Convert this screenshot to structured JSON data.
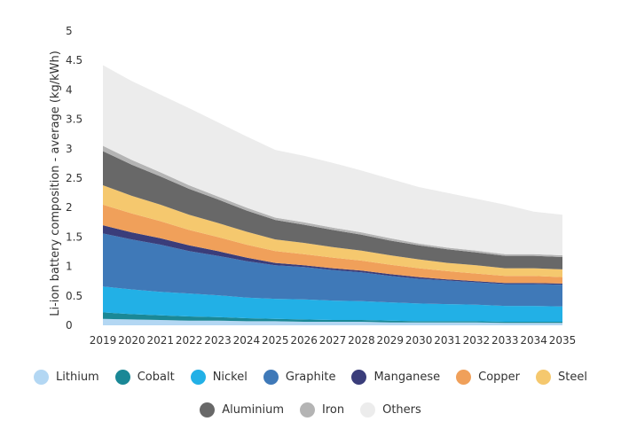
{
  "chart_data": {
    "type": "area",
    "stacked": true,
    "title": "",
    "xlabel": "",
    "ylabel": "Li-ion battery composition - average (kg/kWh)",
    "ylim": [
      0,
      5
    ],
    "yticks": [
      "0",
      "0.5",
      "1",
      "1.5",
      "2",
      "2.5",
      "3",
      "3.5",
      "4",
      "4.5",
      "5"
    ],
    "x": [
      "2019",
      "2020",
      "2021",
      "2022",
      "2023",
      "2024",
      "2025",
      "2026",
      "2027",
      "2028",
      "2029",
      "2030",
      "2031",
      "2032",
      "2033",
      "2034",
      "2035"
    ],
    "series": [
      {
        "name": "Lithium",
        "color": "#b3d7f3",
        "values": [
          0.11,
          0.1,
          0.09,
          0.08,
          0.08,
          0.07,
          0.07,
          0.06,
          0.06,
          0.06,
          0.05,
          0.05,
          0.05,
          0.05,
          0.04,
          0.04,
          0.04
        ]
      },
      {
        "name": "Cobalt",
        "color": "#1a8896",
        "values": [
          0.11,
          0.09,
          0.08,
          0.07,
          0.06,
          0.05,
          0.04,
          0.04,
          0.03,
          0.03,
          0.03,
          0.02,
          0.02,
          0.02,
          0.02,
          0.02,
          0.02
        ]
      },
      {
        "name": "Nickel",
        "color": "#22b0e6",
        "values": [
          0.44,
          0.42,
          0.4,
          0.39,
          0.37,
          0.35,
          0.34,
          0.34,
          0.33,
          0.32,
          0.31,
          0.3,
          0.29,
          0.28,
          0.27,
          0.27,
          0.26
        ]
      },
      {
        "name": "Graphite",
        "color": "#3f79b8",
        "values": [
          0.9,
          0.85,
          0.8,
          0.72,
          0.67,
          0.62,
          0.57,
          0.55,
          0.52,
          0.49,
          0.45,
          0.42,
          0.4,
          0.38,
          0.37,
          0.37,
          0.37
        ]
      },
      {
        "name": "Manganese",
        "color": "#3a3d7a",
        "values": [
          0.14,
          0.12,
          0.11,
          0.1,
          0.08,
          0.06,
          0.04,
          0.03,
          0.03,
          0.03,
          0.03,
          0.03,
          0.02,
          0.02,
          0.02,
          0.02,
          0.02
        ]
      },
      {
        "name": "Copper",
        "color": "#f0a05a",
        "values": [
          0.35,
          0.32,
          0.29,
          0.26,
          0.24,
          0.22,
          0.2,
          0.19,
          0.18,
          0.17,
          0.16,
          0.15,
          0.14,
          0.13,
          0.12,
          0.12,
          0.11
        ]
      },
      {
        "name": "Steel",
        "color": "#f5c86e",
        "values": [
          0.33,
          0.3,
          0.28,
          0.26,
          0.24,
          0.22,
          0.2,
          0.19,
          0.18,
          0.17,
          0.16,
          0.15,
          0.14,
          0.14,
          0.13,
          0.13,
          0.13
        ]
      },
      {
        "name": "Aluminium",
        "color": "#686868",
        "values": [
          0.58,
          0.53,
          0.48,
          0.44,
          0.4,
          0.36,
          0.33,
          0.31,
          0.29,
          0.27,
          0.25,
          0.24,
          0.23,
          0.22,
          0.21,
          0.21,
          0.21
        ]
      },
      {
        "name": "Iron",
        "color": "#b4b4b4",
        "values": [
          0.09,
          0.08,
          0.07,
          0.06,
          0.05,
          0.05,
          0.04,
          0.04,
          0.04,
          0.04,
          0.04,
          0.03,
          0.03,
          0.03,
          0.03,
          0.03,
          0.03
        ]
      },
      {
        "name": "Others",
        "color": "#ececec",
        "values": [
          1.37,
          1.34,
          1.32,
          1.31,
          1.26,
          1.21,
          1.15,
          1.13,
          1.1,
          1.05,
          1.01,
          0.96,
          0.93,
          0.88,
          0.84,
          0.72,
          0.69
        ]
      }
    ],
    "legend_rows": [
      [
        "Lithium",
        "Cobalt",
        "Nickel",
        "Graphite",
        "Manganese",
        "Copper",
        "Steel"
      ],
      [
        "Aluminium",
        "Iron",
        "Others"
      ]
    ]
  }
}
